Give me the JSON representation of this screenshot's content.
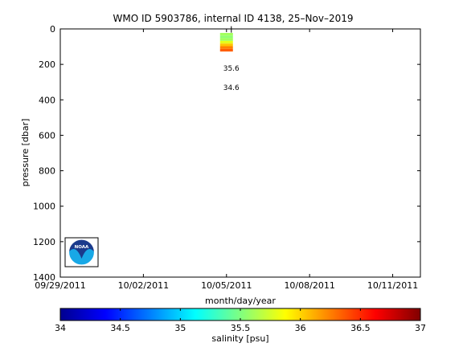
{
  "chart_data": [
    {
      "type": "heatmap",
      "title": "WMO ID 5903786, internal ID 4138, 25–Nov–2019",
      "xlabel": "month/day/year",
      "ylabel": "pressure [dbar]",
      "x_tick_labels": [
        "09/29/2011",
        "10/02/2011",
        "10/05/2011",
        "10/08/2011",
        "10/11/2011"
      ],
      "x_tick_dates": [
        "2011-09-29",
        "2011-10-02",
        "2011-10-05",
        "2011-10-08",
        "2011-10-11"
      ],
      "xlim": [
        "2011-09-29",
        "2011-10-12"
      ],
      "y_tick_labels": [
        "0",
        "200",
        "400",
        "600",
        "800",
        "1000",
        "1200",
        "1400"
      ],
      "ylim": [
        0,
        1400
      ],
      "y_reversed": true,
      "grid": false,
      "profile": {
        "date": "2011-10-05",
        "pressure": [
          30,
          45,
          60,
          75,
          90,
          105,
          120
        ],
        "salinity": [
          35.6,
          35.55,
          35.6,
          35.8,
          36.05,
          36.25,
          36.35
        ]
      },
      "contour_labels": [
        {
          "text": "35.6",
          "pressure": 222
        },
        {
          "text": "34.6",
          "pressure": 330
        }
      ]
    },
    {
      "type": "colorbar",
      "colormap": "jet",
      "label": "salinity [psu]",
      "range": [
        34,
        37
      ],
      "ticks": [
        "34",
        "34.5",
        "35",
        "35.5",
        "36",
        "36.5",
        "37"
      ]
    }
  ],
  "logo": {
    "text": "NOAA",
    "colors": {
      "top": "#1b3a8c",
      "bottom": "#18a8e6",
      "ring": "#ffffff"
    }
  }
}
